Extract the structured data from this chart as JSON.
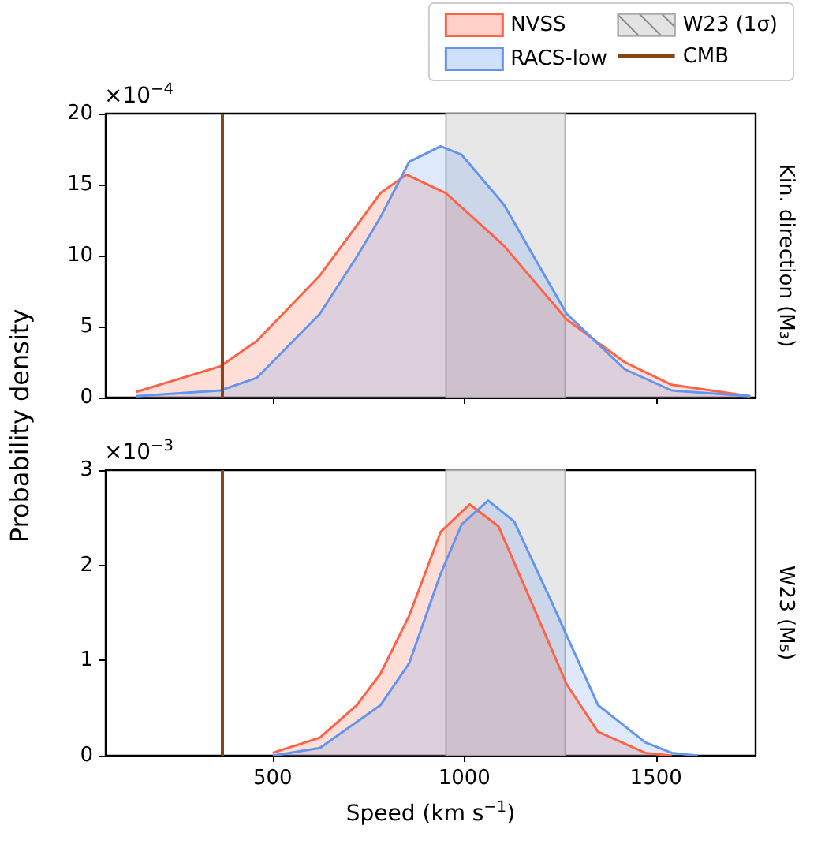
{
  "chart_data": [
    {
      "type": "area",
      "ylabel": "Probability density",
      "y2label": "Kin. direction (M₃)",
      "annotations": [
        "×10$^{−4}$"
      ],
      "xlim": [
        64,
        1760
      ],
      "xticks": [
        500,
        1000,
        1500
      ],
      "ylim": [
        0,
        20
      ],
      "yticks": [
        0,
        5,
        10,
        15,
        20
      ],
      "tick_labels": "y",
      "legend": "top right",
      "series": [
        {
          "name": "NVSS",
          "color": "#ff6347",
          "x": [
            144,
            363,
            459,
            623,
            719,
            781,
            849,
            952,
            1103,
            1267,
            1418,
            1541,
            1746
          ],
          "values": [
            0.4,
            2.2,
            4.0,
            8.6,
            12.1,
            14.4,
            15.7,
            14.4,
            10.7,
            5.5,
            2.5,
            0.9,
            0.1
          ]
        },
        {
          "name": "RACS-low",
          "color": "#6495ed",
          "x": [
            144,
            363,
            459,
            623,
            719,
            781,
            856,
            938,
            993,
            1103,
            1267,
            1418,
            1541,
            1746
          ],
          "values": [
            0.1,
            0.5,
            1.4,
            5.9,
            9.9,
            12.7,
            16.6,
            17.7,
            17.1,
            13.6,
            5.9,
            2.0,
            0.5,
            0.1
          ]
        }
      ],
      "bands": [
        {
          "axis": "x",
          "from": 952,
          "to": 1263,
          "label": "W23 (1σ)",
          "color": "#e3e3e3"
        }
      ],
      "ref_lines": [
        {
          "axis": "x",
          "value": 369,
          "label": "CMB",
          "color": "#8b4513"
        }
      ]
    },
    {
      "type": "area",
      "xlabel": "Speed (km s$^{−1}$)",
      "y2label": "W23 (M₅)",
      "annotations": [
        "×10$^{−3}$"
      ],
      "xlim": [
        64,
        1760
      ],
      "xticks": [
        500,
        1000,
        1500
      ],
      "ylim": [
        0,
        3
      ],
      "yticks": [
        0,
        1,
        2,
        3
      ],
      "series": [
        {
          "color": "#ff6347",
          "x": [
            500,
            623,
            719,
            781,
            856,
            938,
            1014,
            1089,
            1185,
            1267,
            1349,
            1472,
            1541
          ],
          "values": [
            0.03,
            0.19,
            0.53,
            0.86,
            1.47,
            2.35,
            2.64,
            2.41,
            1.52,
            0.75,
            0.25,
            0.03,
            0
          ]
        },
        {
          "color": "#6495ed",
          "x": [
            500,
            623,
            781,
            856,
            938,
            993,
            1062,
            1130,
            1226,
            1349,
            1472,
            1541,
            1609
          ],
          "values": [
            0,
            0.08,
            0.53,
            0.97,
            1.91,
            2.43,
            2.68,
            2.46,
            1.63,
            0.53,
            0.14,
            0.03,
            0
          ]
        }
      ],
      "bands": [
        {
          "axis": "x",
          "from": 952,
          "to": 1263,
          "color": "#e3e3e3"
        }
      ],
      "ref_lines": [
        {
          "axis": "x",
          "value": 369,
          "color": "#8b4513"
        }
      ]
    }
  ]
}
